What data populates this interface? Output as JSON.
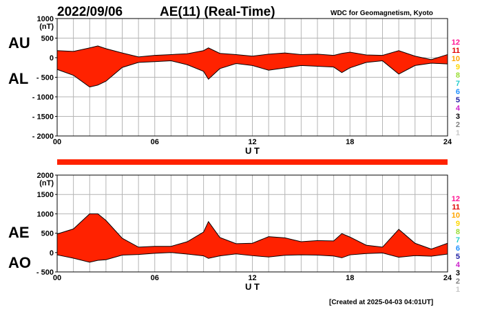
{
  "header": {
    "date": "2022/09/06",
    "title": "AE(11) (Real-Time)",
    "source": "WDC for Geomagnetism, Kyoto"
  },
  "footer": {
    "created": "[Created at 2025-04-03 04:01UT]"
  },
  "chart_data": [
    {
      "type": "area",
      "name": "AU/AL panel",
      "labels": {
        "upper": "AU",
        "lower": "AL"
      },
      "unit": "(nT)",
      "xlabel": "U T",
      "xlim": [
        0,
        24
      ],
      "ylim": [
        -2000,
        1000
      ],
      "x_ticks": [
        "00",
        "06",
        "12",
        "18",
        "24"
      ],
      "y_ticks": [
        "1000",
        "500",
        "0",
        "- 500",
        "- 1000",
        "- 1500",
        "- 2000"
      ],
      "x": [
        0,
        1,
        2,
        2.5,
        3,
        4,
        5,
        6,
        7,
        8,
        9,
        9.3,
        10,
        11,
        12,
        13,
        14,
        15,
        16,
        17,
        17.5,
        18,
        19,
        20,
        21,
        22,
        23,
        24
      ],
      "series": [
        {
          "name": "AU",
          "values": [
            180,
            160,
            250,
            300,
            230,
            120,
            20,
            60,
            80,
            100,
            180,
            250,
            110,
            80,
            40,
            90,
            120,
            80,
            90,
            60,
            110,
            140,
            70,
            60,
            180,
            40,
            -50,
            80
          ]
        },
        {
          "name": "AL",
          "values": [
            -300,
            -450,
            -750,
            -700,
            -600,
            -250,
            -120,
            -100,
            -80,
            -180,
            -350,
            -550,
            -280,
            -150,
            -200,
            -320,
            -260,
            -200,
            -220,
            -240,
            -380,
            -260,
            -120,
            -80,
            -420,
            -200,
            -140,
            -160
          ]
        }
      ]
    },
    {
      "type": "area",
      "name": "AE/AO panel",
      "labels": {
        "upper": "AE",
        "lower": "AO"
      },
      "unit": "(nT)",
      "xlabel": "U T",
      "xlim": [
        0,
        24
      ],
      "ylim": [
        -500,
        2000
      ],
      "x_ticks": [
        "00",
        "06",
        "12",
        "18",
        "24"
      ],
      "y_ticks": [
        "2000",
        "1500",
        "1000",
        "500",
        "0",
        "- 500"
      ],
      "x": [
        0,
        1,
        2,
        2.5,
        3,
        4,
        5,
        6,
        7,
        8,
        9,
        9.3,
        10,
        11,
        12,
        13,
        14,
        15,
        16,
        17,
        17.5,
        18,
        19,
        20,
        21,
        22,
        23,
        24
      ],
      "series": [
        {
          "name": "AE",
          "values": [
            480,
            610,
            1000,
            1000,
            830,
            370,
            140,
            160,
            160,
            280,
            530,
            800,
            390,
            230,
            240,
            410,
            380,
            280,
            310,
            300,
            490,
            400,
            190,
            140,
            600,
            240,
            90,
            240
          ]
        },
        {
          "name": "AO",
          "values": [
            -60,
            -145,
            -250,
            -200,
            -185,
            -65,
            -50,
            -20,
            0,
            -40,
            -85,
            -150,
            -85,
            -35,
            -80,
            -115,
            -70,
            -60,
            -65,
            -90,
            -135,
            -60,
            -25,
            -10,
            -120,
            -80,
            -95,
            -40
          ]
        }
      ]
    }
  ],
  "stations_legend": [
    {
      "label": "12",
      "color": "#ff1493"
    },
    {
      "label": "11",
      "color": "#e00000"
    },
    {
      "label": "10",
      "color": "#ffa500"
    },
    {
      "label": "9",
      "color": "#ffd700"
    },
    {
      "label": "8",
      "color": "#99dd33"
    },
    {
      "label": "7",
      "color": "#22cccc"
    },
    {
      "label": "6",
      "color": "#1e90ff"
    },
    {
      "label": "5",
      "color": "#1a1aa0"
    },
    {
      "label": "4",
      "color": "#cc22cc"
    },
    {
      "label": "3",
      "color": "#000000"
    },
    {
      "label": "2",
      "color": "#808080"
    },
    {
      "label": "1",
      "color": "#c8c8c8"
    }
  ],
  "status_bar": {
    "color": "#ff2200"
  },
  "colors": {
    "fill": "#ff2200",
    "edge": "#000000",
    "grid": "#b4b4b4"
  }
}
